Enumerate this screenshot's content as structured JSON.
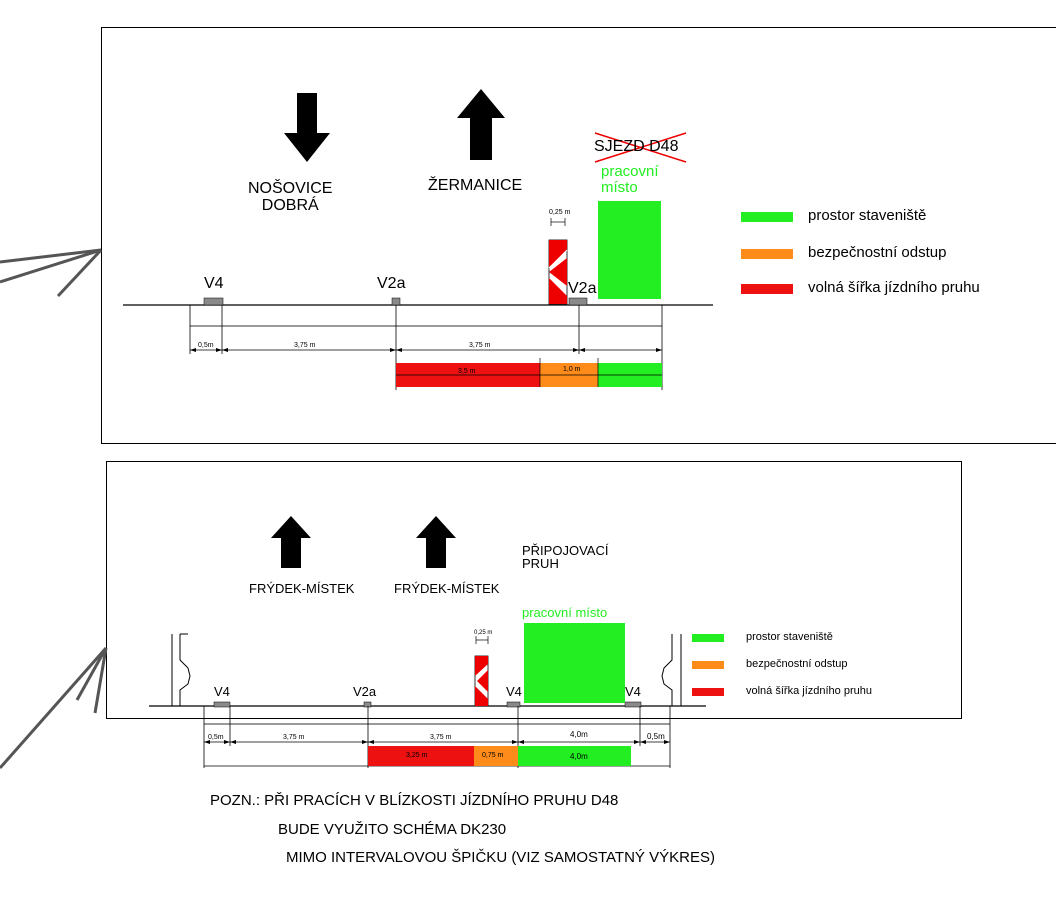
{
  "colors": {
    "work_area": "#22ee22",
    "safety": "#ff8c1a",
    "free_lane": "#ee1111",
    "gray_mark": "#8a8a8a"
  },
  "top": {
    "direction_down": "NOŠOVICE\nDOBRÁ",
    "direction_up": "ŽERMANICE",
    "exit_label": "SJEZD D48",
    "work_place": "pracovní\nmísto",
    "beacon_width": "0,25 m",
    "marks": [
      "V4",
      "V2a",
      "V2a"
    ],
    "dims": [
      "0,5m",
      "3,75 m",
      "3,75 m"
    ],
    "bar_dims": [
      "3,5 m",
      "1,0 m"
    ],
    "legend": {
      "items": [
        {
          "label": "prostor staveniště",
          "color": "#22ee22"
        },
        {
          "label": "bezpečnostní odstup",
          "color": "#ff8c1a"
        },
        {
          "label": "volná šířka jízdního pruhu",
          "color": "#ee1111"
        }
      ]
    }
  },
  "bottom": {
    "direction_1": "FRÝDEK-MÍSTEK",
    "direction_2": "FRÝDEK-MÍSTEK",
    "merge_lane": "PŘIPOJOVACÍ\nPRUH",
    "work_place": "pracovní místo",
    "beacon_width": "0,25 m",
    "marks": [
      "V4",
      "V2a",
      "V4",
      "V4"
    ],
    "dims": [
      "0,5m",
      "3,75 m",
      "3,75 m",
      "4,0m",
      "0,5m"
    ],
    "bar_dims": [
      "3,25 m",
      "0,75 m",
      "4,0m"
    ],
    "legend": {
      "items": [
        {
          "label": "prostor staveniště",
          "color": "#22ee22"
        },
        {
          "label": "bezpečnostní odstup",
          "color": "#ff8c1a"
        },
        {
          "label": "volná šířka jízdního pruhu",
          "color": "#ee1111"
        }
      ]
    }
  },
  "note": {
    "line1": "POZN.: PŘI PRACÍCH V BLÍZKOSTI JÍZDNÍHO PRUHU D48",
    "line2": "BUDE VYUŽITO SCHÉMA DK230",
    "line3": "MIMO INTERVALOVOU ŠPIČKU (VIZ SAMOSTATNÝ VÝKRES)"
  }
}
